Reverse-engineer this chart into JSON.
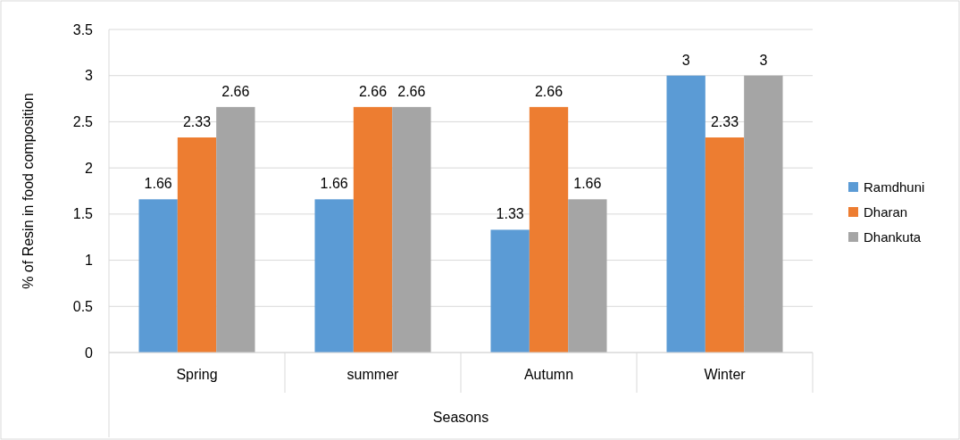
{
  "chart_data": {
    "type": "bar",
    "xlabel": "Seasons",
    "ylabel": "% of Resin in  food composition",
    "categories": [
      "Spring",
      "summer",
      "Autumn",
      "Winter"
    ],
    "series": [
      {
        "name": "Ramdhuni",
        "color": "#5b9bd5",
        "values": [
          1.66,
          1.66,
          1.33,
          3
        ]
      },
      {
        "name": "Dharan",
        "color": "#ed7d31",
        "values": [
          2.33,
          2.66,
          2.66,
          2.33
        ]
      },
      {
        "name": "Dhankuta",
        "color": "#a5a5a5",
        "values": [
          2.66,
          2.66,
          1.66,
          3
        ]
      }
    ],
    "ylim": [
      0,
      3.5
    ],
    "yticks": [
      0,
      0.5,
      1,
      1.5,
      2,
      2.5,
      3,
      3.5
    ],
    "grid": "y",
    "legend": "right",
    "data_labels": true
  }
}
